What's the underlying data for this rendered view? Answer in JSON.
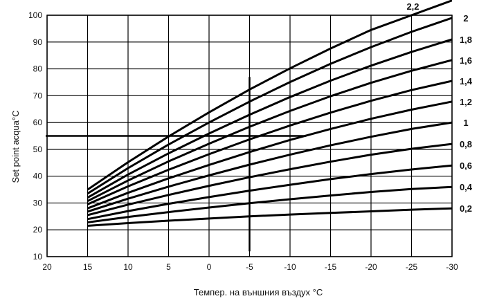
{
  "chart_data": {
    "type": "line",
    "xlabel": "Темпер. на външния въздух °C",
    "ylabel": "Set point acqua°C",
    "xlim": [
      20,
      -30
    ],
    "ylim": [
      10,
      100
    ],
    "x_ticks": [
      20,
      15,
      10,
      5,
      0,
      -5,
      -10,
      -15,
      -20,
      -25,
      -30
    ],
    "y_ticks": [
      10,
      20,
      30,
      40,
      50,
      60,
      70,
      80,
      90,
      100
    ],
    "grid": true,
    "series": [
      {
        "name": "0,2",
        "x": [
          15,
          10,
          5,
          0,
          -5,
          -10,
          -15,
          -20,
          -25,
          -30
        ],
        "y": [
          21.5,
          22.5,
          23.4,
          24.2,
          25.0,
          25.7,
          26.3,
          26.9,
          27.5,
          28.0
        ]
      },
      {
        "name": "0,4",
        "x": [
          15,
          10,
          5,
          0,
          -5,
          -10,
          -15,
          -20,
          -25,
          -30
        ],
        "y": [
          22.8,
          24.8,
          26.6,
          28.3,
          29.9,
          31.4,
          32.8,
          34.1,
          35.2,
          36.0
        ]
      },
      {
        "name": "0,6",
        "x": [
          15,
          10,
          5,
          0,
          -5,
          -10,
          -15,
          -20,
          -25,
          -30
        ],
        "y": [
          24.0,
          27.0,
          29.7,
          32.2,
          34.6,
          36.8,
          38.9,
          40.8,
          42.5,
          44.0
        ]
      },
      {
        "name": "0,8",
        "x": [
          15,
          10,
          5,
          0,
          -5,
          -10,
          -15,
          -20,
          -25,
          -30
        ],
        "y": [
          25.5,
          29.4,
          33.0,
          36.4,
          39.6,
          42.6,
          45.4,
          48.0,
          50.2,
          52.0
        ]
      },
      {
        "name": "1",
        "x": [
          15,
          10,
          5,
          0,
          -5,
          -10,
          -15,
          -20,
          -25,
          -30
        ],
        "y": [
          26.8,
          31.6,
          36.1,
          40.3,
          44.3,
          48.0,
          51.5,
          54.7,
          57.6,
          60.0
        ]
      },
      {
        "name": "1,2",
        "x": [
          15,
          10,
          5,
          0,
          -5,
          -10,
          -15,
          -20,
          -25,
          -30
        ],
        "y": [
          28.0,
          33.8,
          39.2,
          44.2,
          49.0,
          53.5,
          57.6,
          61.4,
          64.8,
          67.8
        ]
      },
      {
        "name": "1,4",
        "x": [
          15,
          10,
          5,
          0,
          -5,
          -10,
          -15,
          -20,
          -25,
          -30
        ],
        "y": [
          29.5,
          36.2,
          42.4,
          48.2,
          53.7,
          58.9,
          63.7,
          68.1,
          72.1,
          75.5
        ]
      },
      {
        "name": "1,6",
        "x": [
          15,
          10,
          5,
          0,
          -5,
          -10,
          -15,
          -20,
          -25,
          -30
        ],
        "y": [
          30.7,
          38.4,
          45.5,
          52.1,
          58.4,
          64.3,
          69.8,
          74.8,
          79.3,
          83.3
        ]
      },
      {
        "name": "1,8",
        "x": [
          15,
          10,
          5,
          0,
          -5,
          -10,
          -15,
          -20,
          -25,
          -30
        ],
        "y": [
          32.0,
          40.6,
          48.5,
          55.9,
          62.9,
          69.5,
          75.6,
          81.2,
          86.3,
          91.0
        ]
      },
      {
        "name": "2",
        "x": [
          15,
          10,
          5,
          0,
          -5,
          -10,
          -15,
          -20,
          -25,
          -30
        ],
        "y": [
          33.5,
          43.0,
          51.8,
          60.0,
          67.8,
          75.1,
          81.9,
          88.1,
          93.8,
          99.0
        ]
      },
      {
        "name": "2,2",
        "x": [
          15,
          10,
          5,
          0,
          -5,
          -10,
          -15,
          -20,
          -25,
          -30
        ],
        "y": [
          35.0,
          45.2,
          54.8,
          63.8,
          72.3,
          80.2,
          87.6,
          94.5,
          100.0,
          105.5
        ]
      }
    ],
    "reference_lines": [
      {
        "orientation": "horizontal",
        "value": 55,
        "from": 20,
        "to": -12
      },
      {
        "orientation": "vertical",
        "value": -5,
        "from": 12,
        "to": 77
      }
    ]
  }
}
